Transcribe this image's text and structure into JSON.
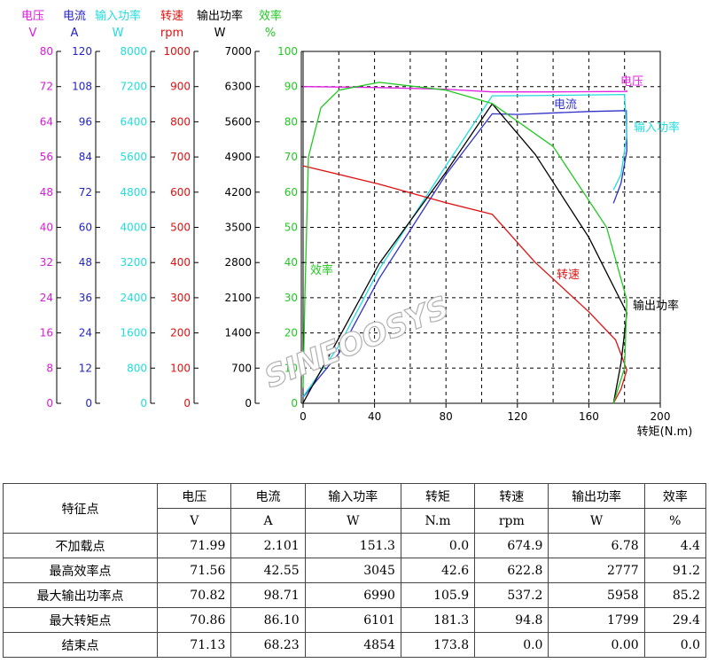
{
  "chart_data": {
    "type": "line",
    "xlabel": "转矩(N.m)",
    "xlim": [
      0,
      200
    ],
    "xticks": [
      0,
      40,
      80,
      120,
      160,
      200
    ],
    "grid": true,
    "axes": [
      {
        "name": "电压",
        "unit": "V",
        "color": "#d81bd8",
        "range": [
          0,
          80
        ],
        "ticks": [
          0,
          8,
          16,
          24,
          32,
          40,
          48,
          56,
          64,
          72,
          80
        ]
      },
      {
        "name": "电流",
        "unit": "A",
        "color": "#2323c8",
        "range": [
          0,
          120
        ],
        "ticks": [
          0,
          12,
          24,
          36,
          48,
          60,
          72,
          84,
          96,
          108,
          120
        ]
      },
      {
        "name": "输入功率",
        "unit": "W",
        "color": "#22dcdc",
        "range": [
          0,
          8000
        ],
        "ticks": [
          0,
          800,
          1600,
          2400,
          3200,
          4000,
          4800,
          5600,
          6400,
          7200,
          8000
        ]
      },
      {
        "name": "转速",
        "unit": "rpm",
        "color": "#e01010",
        "range": [
          0,
          1000
        ],
        "ticks": [
          0,
          100,
          200,
          300,
          400,
          500,
          600,
          700,
          800,
          900,
          1000
        ]
      },
      {
        "name": "输出功率",
        "unit": "W",
        "color": "#000000",
        "range": [
          0,
          7000
        ],
        "ticks": [
          0,
          700,
          1400,
          2100,
          2800,
          3500,
          4200,
          4900,
          5600,
          6300,
          7000
        ]
      },
      {
        "name": "效率",
        "unit": "%",
        "color": "#22c822",
        "range": [
          0,
          100
        ],
        "ticks": [
          0,
          10,
          20,
          30,
          40,
          50,
          60,
          70,
          80,
          90,
          100
        ]
      }
    ],
    "series": [
      {
        "name": "电压",
        "axis": 0,
        "color": "#e020e0",
        "points": [
          [
            0,
            72.0
          ],
          [
            40,
            71.8
          ],
          [
            80,
            71.4
          ],
          [
            105.9,
            70.8
          ],
          [
            140,
            70.8
          ],
          [
            181.3,
            70.9
          ],
          [
            181,
            71.2
          ]
        ]
      },
      {
        "name": "电流",
        "axis": 1,
        "color": "#3030c8",
        "points": [
          [
            0,
            2.1
          ],
          [
            20,
            17
          ],
          [
            42.6,
            42.55
          ],
          [
            80,
            78
          ],
          [
            105.9,
            98.71
          ],
          [
            120,
            98.5
          ],
          [
            160,
            99.5
          ],
          [
            181,
            99.8
          ],
          [
            181.3,
            86.1
          ],
          [
            178,
            75
          ],
          [
            173.8,
            68.23
          ]
        ]
      },
      {
        "name": "输入功率",
        "axis": 2,
        "color": "#22dcdc",
        "points": [
          [
            0,
            151
          ],
          [
            20,
            1300
          ],
          [
            42.6,
            3045
          ],
          [
            80,
            5400
          ],
          [
            105.9,
            6990
          ],
          [
            140,
            7000
          ],
          [
            180,
            7020
          ],
          [
            181.3,
            6101
          ],
          [
            178,
            5200
          ],
          [
            173.8,
            4854
          ]
        ]
      },
      {
        "name": "转速",
        "axis": 3,
        "color": "#e01010",
        "points": [
          [
            0,
            674.9
          ],
          [
            42.6,
            622.8
          ],
          [
            80,
            570
          ],
          [
            105.9,
            537.2
          ],
          [
            130,
            400
          ],
          [
            160,
            260
          ],
          [
            175,
            180
          ],
          [
            181.3,
            94.8
          ],
          [
            178,
            40
          ],
          [
            173.8,
            0
          ]
        ]
      },
      {
        "name": "输出功率",
        "axis": 4,
        "color": "#000000",
        "points": [
          [
            0,
            6.78
          ],
          [
            20,
            1300
          ],
          [
            42.6,
            2777
          ],
          [
            80,
            4600
          ],
          [
            105.9,
            5958
          ],
          [
            130,
            4950
          ],
          [
            160,
            3300
          ],
          [
            181.3,
            1799
          ],
          [
            178,
            800
          ],
          [
            173.8,
            0
          ]
        ]
      },
      {
        "name": "效率",
        "axis": 5,
        "color": "#22c822",
        "points": [
          [
            0,
            4.4
          ],
          [
            1,
            30
          ],
          [
            3,
            70
          ],
          [
            10,
            84
          ],
          [
            20,
            89
          ],
          [
            42.6,
            91.2
          ],
          [
            80,
            89
          ],
          [
            105.9,
            85.2
          ],
          [
            140,
            73
          ],
          [
            170,
            50
          ],
          [
            181.3,
            29.4
          ],
          [
            180,
            10
          ],
          [
            173.8,
            0
          ]
        ]
      }
    ],
    "annotations": [
      {
        "text": "电压",
        "color": "#e020e0"
      },
      {
        "text": "电流",
        "color": "#3030c8"
      },
      {
        "text": "输入功率",
        "color": "#22dcdc"
      },
      {
        "text": "转速",
        "color": "#e01010"
      },
      {
        "text": "输出功率",
        "color": "#000000"
      },
      {
        "text": "效率",
        "color": "#22c822"
      }
    ],
    "watermark": "SINEOOSYS"
  },
  "table": {
    "corner": "特征点",
    "headers": [
      "电压",
      "电流",
      "输入功率",
      "转矩",
      "转速",
      "输出功率",
      "效率"
    ],
    "units": [
      "V",
      "A",
      "W",
      "N.m",
      "rpm",
      "W",
      "%"
    ],
    "rows": [
      {
        "label": "不加载点",
        "values": [
          "71.99",
          "2.101",
          "151.3",
          "0.0",
          "674.9",
          "6.78",
          "4.4"
        ]
      },
      {
        "label": "最高效率点",
        "values": [
          "71.56",
          "42.55",
          "3045",
          "42.6",
          "622.8",
          "2777",
          "91.2"
        ]
      },
      {
        "label": "最大输出功率点",
        "values": [
          "70.82",
          "98.71",
          "6990",
          "105.9",
          "537.2",
          "5958",
          "85.2"
        ]
      },
      {
        "label": "最大转矩点",
        "values": [
          "70.86",
          "86.10",
          "6101",
          "181.3",
          "94.8",
          "1799",
          "29.4"
        ]
      },
      {
        "label": "结束点",
        "values": [
          "71.13",
          "68.23",
          "4854",
          "173.8",
          "0.0",
          "0.00",
          "0.0"
        ]
      }
    ]
  }
}
